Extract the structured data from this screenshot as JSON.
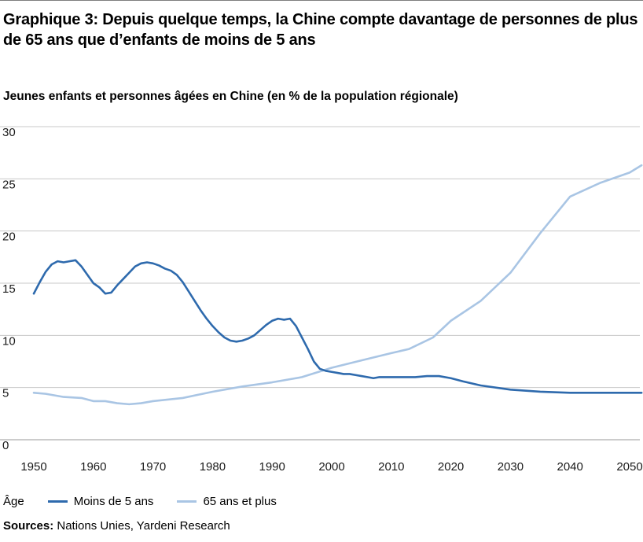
{
  "header": {
    "title": "Graphique 3: Depuis quelque temps, la Chine compte davantage de personnes de plus de 65 ans que d’enfants de moins de 5 ans",
    "subtitle": "Jeunes enfants et personnes âgées en Chine (en % de la population régionale)"
  },
  "legend": {
    "title": "Âge"
  },
  "footer": {
    "sources_label": "Sources:",
    "sources_text": " Nations Unies, Yardeni Research"
  },
  "chart_data": {
    "type": "line",
    "title": "Jeunes enfants et personnes âgées en Chine (en % de la population régionale)",
    "xlabel": "",
    "ylabel": "",
    "xlim": [
      1949,
      2052
    ],
    "ylim": [
      0,
      30
    ],
    "xticks": [
      1950,
      1960,
      1970,
      1980,
      1990,
      2000,
      2010,
      2020,
      2030,
      2040,
      2050
    ],
    "yticks": [
      0,
      5,
      10,
      15,
      20,
      25,
      30
    ],
    "grid": "horizontal",
    "legend_position": "bottom",
    "series": [
      {
        "name": "Moins de 5 ans",
        "color": "#2e6aad",
        "points": [
          [
            1950,
            14.0
          ],
          [
            1951,
            15.1
          ],
          [
            1952,
            16.1
          ],
          [
            1953,
            16.8
          ],
          [
            1954,
            17.1
          ],
          [
            1955,
            17.0
          ],
          [
            1956,
            17.1
          ],
          [
            1957,
            17.2
          ],
          [
            1958,
            16.6
          ],
          [
            1959,
            15.8
          ],
          [
            1960,
            15.0
          ],
          [
            1961,
            14.6
          ],
          [
            1962,
            14.0
          ],
          [
            1963,
            14.1
          ],
          [
            1964,
            14.8
          ],
          [
            1965,
            15.4
          ],
          [
            1966,
            16.0
          ],
          [
            1967,
            16.6
          ],
          [
            1968,
            16.9
          ],
          [
            1969,
            17.0
          ],
          [
            1970,
            16.9
          ],
          [
            1971,
            16.7
          ],
          [
            1972,
            16.4
          ],
          [
            1973,
            16.2
          ],
          [
            1974,
            15.8
          ],
          [
            1975,
            15.1
          ],
          [
            1976,
            14.2
          ],
          [
            1977,
            13.3
          ],
          [
            1978,
            12.4
          ],
          [
            1979,
            11.6
          ],
          [
            1980,
            10.9
          ],
          [
            1981,
            10.3
          ],
          [
            1982,
            9.8
          ],
          [
            1983,
            9.5
          ],
          [
            1984,
            9.4
          ],
          [
            1985,
            9.5
          ],
          [
            1986,
            9.7
          ],
          [
            1987,
            10.0
          ],
          [
            1988,
            10.5
          ],
          [
            1989,
            11.0
          ],
          [
            1990,
            11.4
          ],
          [
            1991,
            11.6
          ],
          [
            1992,
            11.5
          ],
          [
            1993,
            11.6
          ],
          [
            1994,
            10.9
          ],
          [
            1995,
            9.8
          ],
          [
            1996,
            8.7
          ],
          [
            1997,
            7.5
          ],
          [
            1998,
            6.8
          ],
          [
            1999,
            6.6
          ],
          [
            2000,
            6.5
          ],
          [
            2001,
            6.4
          ],
          [
            2002,
            6.3
          ],
          [
            2003,
            6.3
          ],
          [
            2004,
            6.2
          ],
          [
            2005,
            6.1
          ],
          [
            2006,
            6.0
          ],
          [
            2007,
            5.9
          ],
          [
            2008,
            6.0
          ],
          [
            2010,
            6.0
          ],
          [
            2012,
            6.0
          ],
          [
            2014,
            6.0
          ],
          [
            2016,
            6.1
          ],
          [
            2018,
            6.1
          ],
          [
            2020,
            5.9
          ],
          [
            2022,
            5.6
          ],
          [
            2025,
            5.2
          ],
          [
            2030,
            4.8
          ],
          [
            2035,
            4.6
          ],
          [
            2040,
            4.5
          ],
          [
            2045,
            4.5
          ],
          [
            2050,
            4.5
          ],
          [
            2052,
            4.5
          ]
        ]
      },
      {
        "name": "65 ans et plus",
        "color": "#a9c5e4",
        "points": [
          [
            1950,
            4.5
          ],
          [
            1952,
            4.4
          ],
          [
            1955,
            4.1
          ],
          [
            1958,
            4.0
          ],
          [
            1960,
            3.7
          ],
          [
            1962,
            3.7
          ],
          [
            1964,
            3.5
          ],
          [
            1966,
            3.4
          ],
          [
            1968,
            3.5
          ],
          [
            1970,
            3.7
          ],
          [
            1975,
            4.0
          ],
          [
            1980,
            4.6
          ],
          [
            1985,
            5.1
          ],
          [
            1990,
            5.5
          ],
          [
            1995,
            6.0
          ],
          [
            2000,
            6.9
          ],
          [
            2005,
            7.6
          ],
          [
            2010,
            8.3
          ],
          [
            2013,
            8.7
          ],
          [
            2017,
            9.8
          ],
          [
            2020,
            11.4
          ],
          [
            2025,
            13.3
          ],
          [
            2030,
            16.0
          ],
          [
            2035,
            19.8
          ],
          [
            2040,
            23.3
          ],
          [
            2045,
            24.6
          ],
          [
            2050,
            25.6
          ],
          [
            2052,
            26.3
          ]
        ]
      }
    ]
  }
}
